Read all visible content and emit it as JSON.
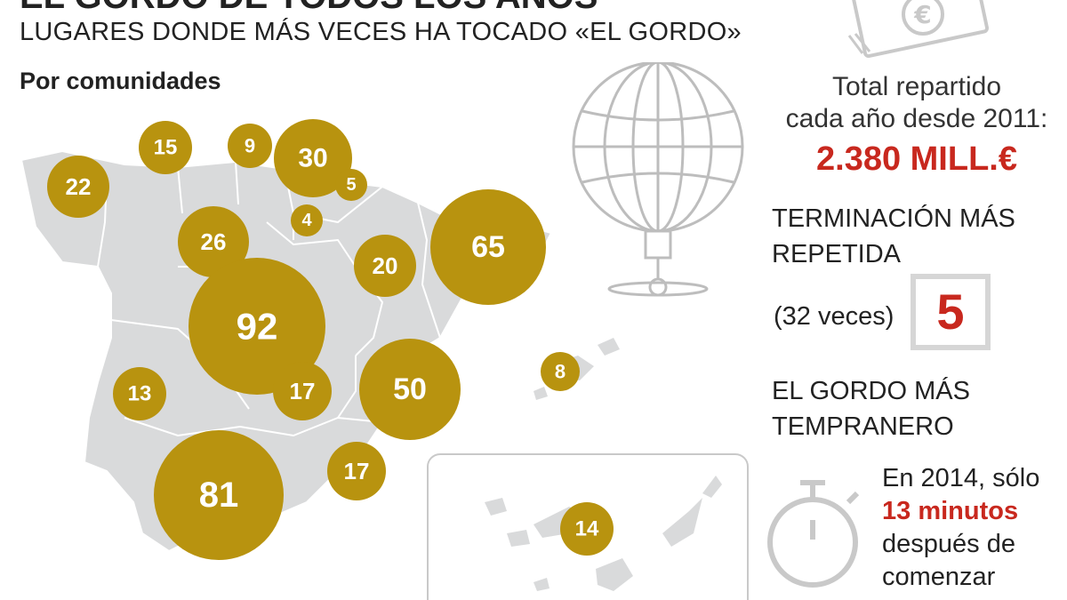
{
  "header": {
    "title": "EL GORDO DE TODOS LOS AÑOS",
    "subtitle": "LUGARES DONDE MÁS VECES HA TOCADO «EL GORDO»",
    "section": "Por comunidades"
  },
  "map": {
    "bubble_color": "#b8930f",
    "land_color": "#d9dadb",
    "bubbles": [
      {
        "region": "Galicia",
        "value": "22"
      },
      {
        "region": "Asturias",
        "value": "15"
      },
      {
        "region": "Cantabria",
        "value": "9"
      },
      {
        "region": "País Vasco",
        "value": "30"
      },
      {
        "region": "Navarra",
        "value": "5"
      },
      {
        "region": "La Rioja",
        "value": "4"
      },
      {
        "region": "Castilla y León",
        "value": "26"
      },
      {
        "region": "Aragón",
        "value": "20"
      },
      {
        "region": "Cataluña",
        "value": "65"
      },
      {
        "region": "Madrid",
        "value": "92"
      },
      {
        "region": "Castilla-La Mancha",
        "value": "17"
      },
      {
        "region": "Extremadura",
        "value": "13"
      },
      {
        "region": "Comunidad Valenciana",
        "value": "50"
      },
      {
        "region": "Baleares",
        "value": "8"
      },
      {
        "region": "Murcia",
        "value": "17"
      },
      {
        "region": "Andalucía",
        "value": "81"
      },
      {
        "region": "Canarias",
        "value": "14"
      }
    ]
  },
  "stats": {
    "total_label_line1": "Total repartido",
    "total_label_line2": "cada año desde 2011:",
    "total_value": "2.380 MILL.€",
    "ending_label_line1": "TERMINACIÓN MÁS",
    "ending_label_line2": "REPETIDA",
    "ending_times": "(32 veces)",
    "ending_digit": "5",
    "earliest_label_line1": "EL GORDO MÁS",
    "earliest_label_line2": "TEMPRANERO",
    "earliest_line1": "En 2014, sólo",
    "earliest_highlight": "13 minutos",
    "earliest_line3": "después de",
    "earliest_line4": "comenzar"
  },
  "colors": {
    "accent_red": "#c8281e",
    "gold": "#b8930f",
    "grey_icon": "#c9c9c9"
  },
  "icons": [
    "money-bills-icon",
    "lottery-drum-icon",
    "stopwatch-icon"
  ]
}
